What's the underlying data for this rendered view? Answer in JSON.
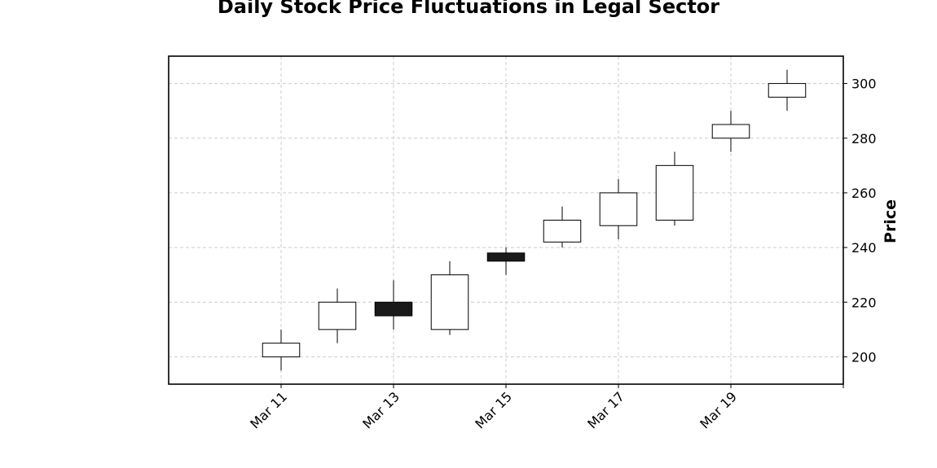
{
  "chart_data": {
    "type": "candlestick",
    "title": "Daily Stock Price Fluctuations in Legal Sector",
    "xlabel": "",
    "ylabel": "Price",
    "y_axis_side": "right",
    "ylim": [
      190,
      310
    ],
    "y_ticks": [
      200,
      220,
      240,
      260,
      280,
      300
    ],
    "x_ticks": [
      {
        "date": "2024-03-11",
        "label": "Mar 11"
      },
      {
        "date": "2024-03-13",
        "label": "Mar 13"
      },
      {
        "date": "2024-03-15",
        "label": "Mar 15"
      },
      {
        "date": "2024-03-17",
        "label": "Mar 17"
      },
      {
        "date": "2024-03-19",
        "label": "Mar 19"
      },
      {
        "date": "2024-03-21",
        "label": ""
      }
    ],
    "xlim": [
      "2024-03-09",
      "2024-03-21"
    ],
    "grid": true,
    "colors": {
      "up": "#ffffff",
      "down": "#1a1a1a",
      "edge": "#000000",
      "grid": "#cccccc"
    },
    "candles": [
      {
        "date": "2024-03-11",
        "open": 200,
        "high": 210,
        "low": 195,
        "close": 205
      },
      {
        "date": "2024-03-12",
        "open": 210,
        "high": 225,
        "low": 205,
        "close": 220
      },
      {
        "date": "2024-03-13",
        "open": 220,
        "high": 228,
        "low": 210,
        "close": 215
      },
      {
        "date": "2024-03-14",
        "open": 210,
        "high": 235,
        "low": 208,
        "close": 230
      },
      {
        "date": "2024-03-15",
        "open": 238,
        "high": 240,
        "low": 230,
        "close": 235
      },
      {
        "date": "2024-03-16",
        "open": 242,
        "high": 255,
        "low": 240,
        "close": 250
      },
      {
        "date": "2024-03-17",
        "open": 248,
        "high": 265,
        "low": 243,
        "close": 260
      },
      {
        "date": "2024-03-18",
        "open": 250,
        "high": 275,
        "low": 248,
        "close": 270
      },
      {
        "date": "2024-03-19",
        "open": 280,
        "high": 290,
        "low": 275,
        "close": 285
      },
      {
        "date": "2024-03-20",
        "open": 295,
        "high": 305,
        "low": 290,
        "close": 300
      }
    ]
  }
}
